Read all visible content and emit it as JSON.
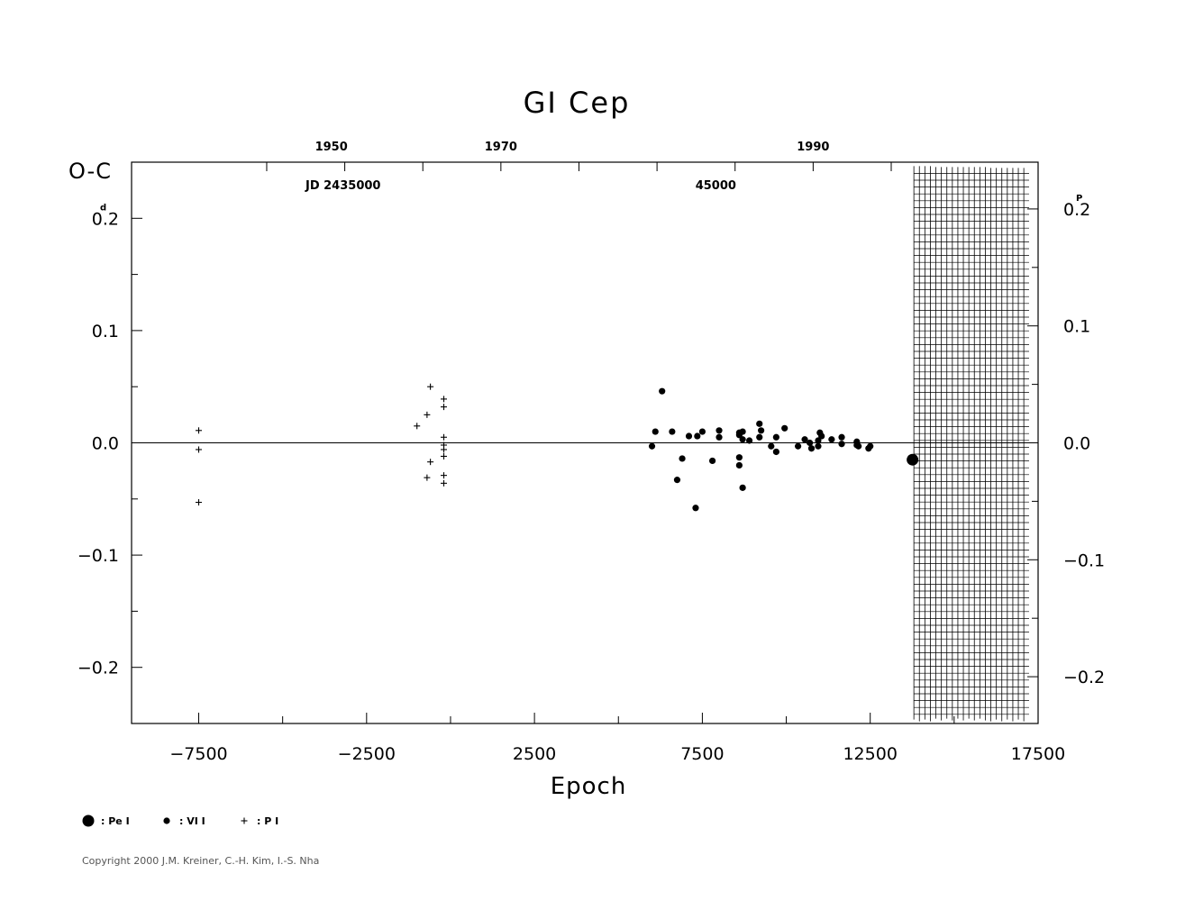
{
  "chart_data": {
    "type": "scatter",
    "title": "GI Cep",
    "ylabel_left": "O-C",
    "ylabel_left_unit": "d",
    "ylabel_right_unit": "P",
    "xlabel": "Epoch",
    "xlim": [
      -9500,
      17500
    ],
    "ylim": [
      -0.25,
      0.25
    ],
    "ylim_right": [
      -0.24,
      0.24
    ],
    "x_ticks": [
      -7500,
      -2500,
      2500,
      7500,
      12500,
      17500
    ],
    "x_tick_labels": [
      "−7500",
      "−2500",
      "2500",
      "7500",
      "12500",
      "17500"
    ],
    "y_ticks_left": [
      0.2,
      0.1,
      0.0,
      -0.1,
      -0.2
    ],
    "y_tick_labels_left": [
      "0.2",
      "0.1",
      "0.0",
      "−0.1",
      "−0.2"
    ],
    "y_ticks_right": [
      0.2,
      0.1,
      0.0,
      -0.1,
      -0.2
    ],
    "y_tick_labels_right": [
      "0.2",
      "0.1",
      "0.0",
      "−0.1",
      "−0.2"
    ],
    "top_year_ticks": [
      {
        "label": "1950",
        "epoch": -3550
      },
      {
        "label": "1970",
        "epoch": 1500
      },
      {
        "label": "1990",
        "epoch": 10800
      }
    ],
    "top_jd_labels": [
      {
        "label": "JD  2435000",
        "epoch": -3200
      },
      {
        "label": "45000",
        "epoch": 7900
      }
    ],
    "hatched_region": {
      "x_from": 13800,
      "x_to": 17500,
      "y_from": -0.224,
      "y_to": 0.224
    },
    "series": [
      {
        "name": ": Pe I",
        "marker": "large-dot",
        "points": [
          [
            13760,
            -0.015
          ]
        ]
      },
      {
        "name": ": VI I",
        "marker": "dot",
        "points": [
          [
            6000,
            -0.003
          ],
          [
            6100,
            0.01
          ],
          [
            6300,
            0.046
          ],
          [
            6600,
            0.01
          ],
          [
            6750,
            -0.033
          ],
          [
            6900,
            -0.014
          ],
          [
            7100,
            0.006
          ],
          [
            7300,
            -0.058
          ],
          [
            7350,
            0.006
          ],
          [
            7500,
            0.01
          ],
          [
            7800,
            -0.016
          ],
          [
            8000,
            0.011
          ],
          [
            8000,
            0.005
          ],
          [
            8600,
            0.007
          ],
          [
            8600,
            0.009
          ],
          [
            8600,
            -0.013
          ],
          [
            8600,
            -0.02
          ],
          [
            8700,
            0.003
          ],
          [
            8700,
            -0.04
          ],
          [
            8700,
            0.01
          ],
          [
            8900,
            0.002
          ],
          [
            9200,
            0.017
          ],
          [
            9250,
            0.011
          ],
          [
            9200,
            0.005
          ],
          [
            9550,
            -0.003
          ],
          [
            9700,
            0.005
          ],
          [
            9700,
            -0.008
          ],
          [
            9950,
            0.013
          ],
          [
            10350,
            -0.003
          ],
          [
            10550,
            0.003
          ],
          [
            10700,
            0.0
          ],
          [
            10750,
            -0.005
          ],
          [
            10950,
            0.002
          ],
          [
            11000,
            0.009
          ],
          [
            10950,
            -0.003
          ],
          [
            11050,
            0.006
          ],
          [
            11350,
            0.003
          ],
          [
            11650,
            0.005
          ],
          [
            11650,
            -0.001
          ],
          [
            12100,
            0.001
          ],
          [
            12100,
            -0.002
          ],
          [
            12150,
            -0.003
          ],
          [
            12450,
            -0.005
          ],
          [
            12500,
            -0.003
          ]
        ]
      },
      {
        "name": ": P I",
        "marker": "plus",
        "points": [
          [
            -7500,
            0.011
          ],
          [
            -7500,
            -0.006
          ],
          [
            -7500,
            -0.053
          ],
          [
            -1000,
            0.015
          ],
          [
            -700,
            0.025
          ],
          [
            -600,
            0.05
          ],
          [
            -600,
            -0.017
          ],
          [
            -700,
            -0.031
          ],
          [
            -200,
            0.039
          ],
          [
            -200,
            0.032
          ],
          [
            -200,
            0.005
          ],
          [
            -200,
            -0.002
          ],
          [
            -200,
            -0.006
          ],
          [
            -200,
            -0.012
          ],
          [
            -200,
            -0.029
          ],
          [
            -200,
            -0.036
          ]
        ]
      }
    ]
  },
  "copyright": "Copyright 2000 J.M. Kreiner, C.-H. Kim, I.-S. Nha"
}
